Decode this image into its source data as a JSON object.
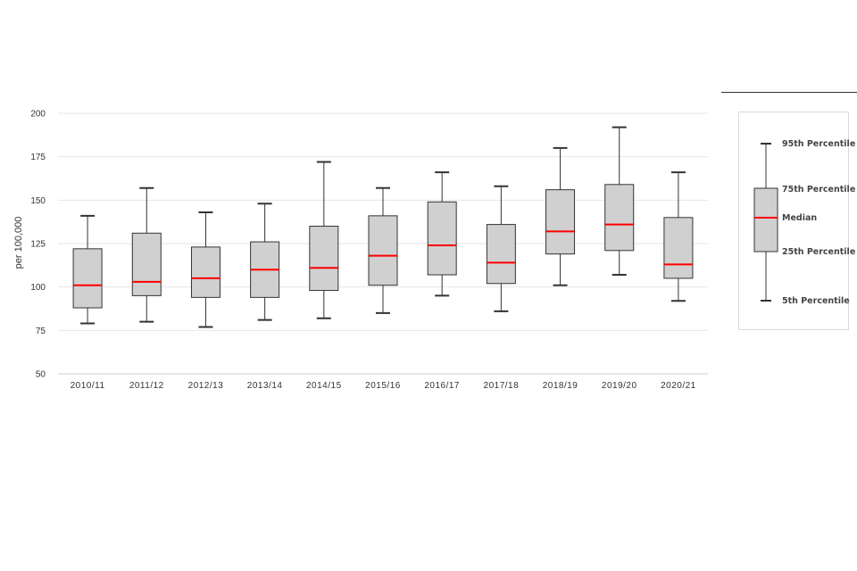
{
  "chart_data": {
    "type": "boxplot",
    "ylabel": "per 100,000",
    "ylim": [
      50,
      200
    ],
    "yticks": [
      50,
      75,
      100,
      125,
      150,
      175,
      200
    ],
    "grid": true,
    "categories": [
      "2010/11",
      "2011/12",
      "2012/13",
      "2013/14",
      "2014/15",
      "2015/16",
      "2016/17",
      "2017/18",
      "2018/19",
      "2019/20",
      "2020/21"
    ],
    "boxes": [
      {
        "p5": 79,
        "p25": 88,
        "median": 101,
        "p75": 122,
        "p95": 141
      },
      {
        "p5": 80,
        "p25": 95,
        "median": 103,
        "p75": 131,
        "p95": 157
      },
      {
        "p5": 77,
        "p25": 94,
        "median": 105,
        "p75": 123,
        "p95": 143
      },
      {
        "p5": 81,
        "p25": 94,
        "median": 110,
        "p75": 126,
        "p95": 148
      },
      {
        "p5": 82,
        "p25": 98,
        "median": 111,
        "p75": 135,
        "p95": 172
      },
      {
        "p5": 85,
        "p25": 101,
        "median": 118,
        "p75": 141,
        "p95": 157
      },
      {
        "p5": 95,
        "p25": 107,
        "median": 124,
        "p75": 149,
        "p95": 166
      },
      {
        "p5": 86,
        "p25": 102,
        "median": 114,
        "p75": 136,
        "p95": 158
      },
      {
        "p5": 101,
        "p25": 119,
        "median": 132,
        "p75": 156,
        "p95": 180
      },
      {
        "p5": 107,
        "p25": 121,
        "median": 136,
        "p75": 159,
        "p95": 192
      },
      {
        "p5": 92,
        "p25": 105,
        "median": 113,
        "p75": 140,
        "p95": 166
      }
    ],
    "colors": {
      "box_fill": "#d0d0d0",
      "box_stroke": "#333333",
      "median": "#ff0000",
      "grid": "#e6e6e6"
    }
  },
  "legend": {
    "p95": "95th Percentile",
    "p75": "75th Percentile",
    "median": "Median",
    "p25": "25th Percentile",
    "p5": "5th Percentile"
  }
}
